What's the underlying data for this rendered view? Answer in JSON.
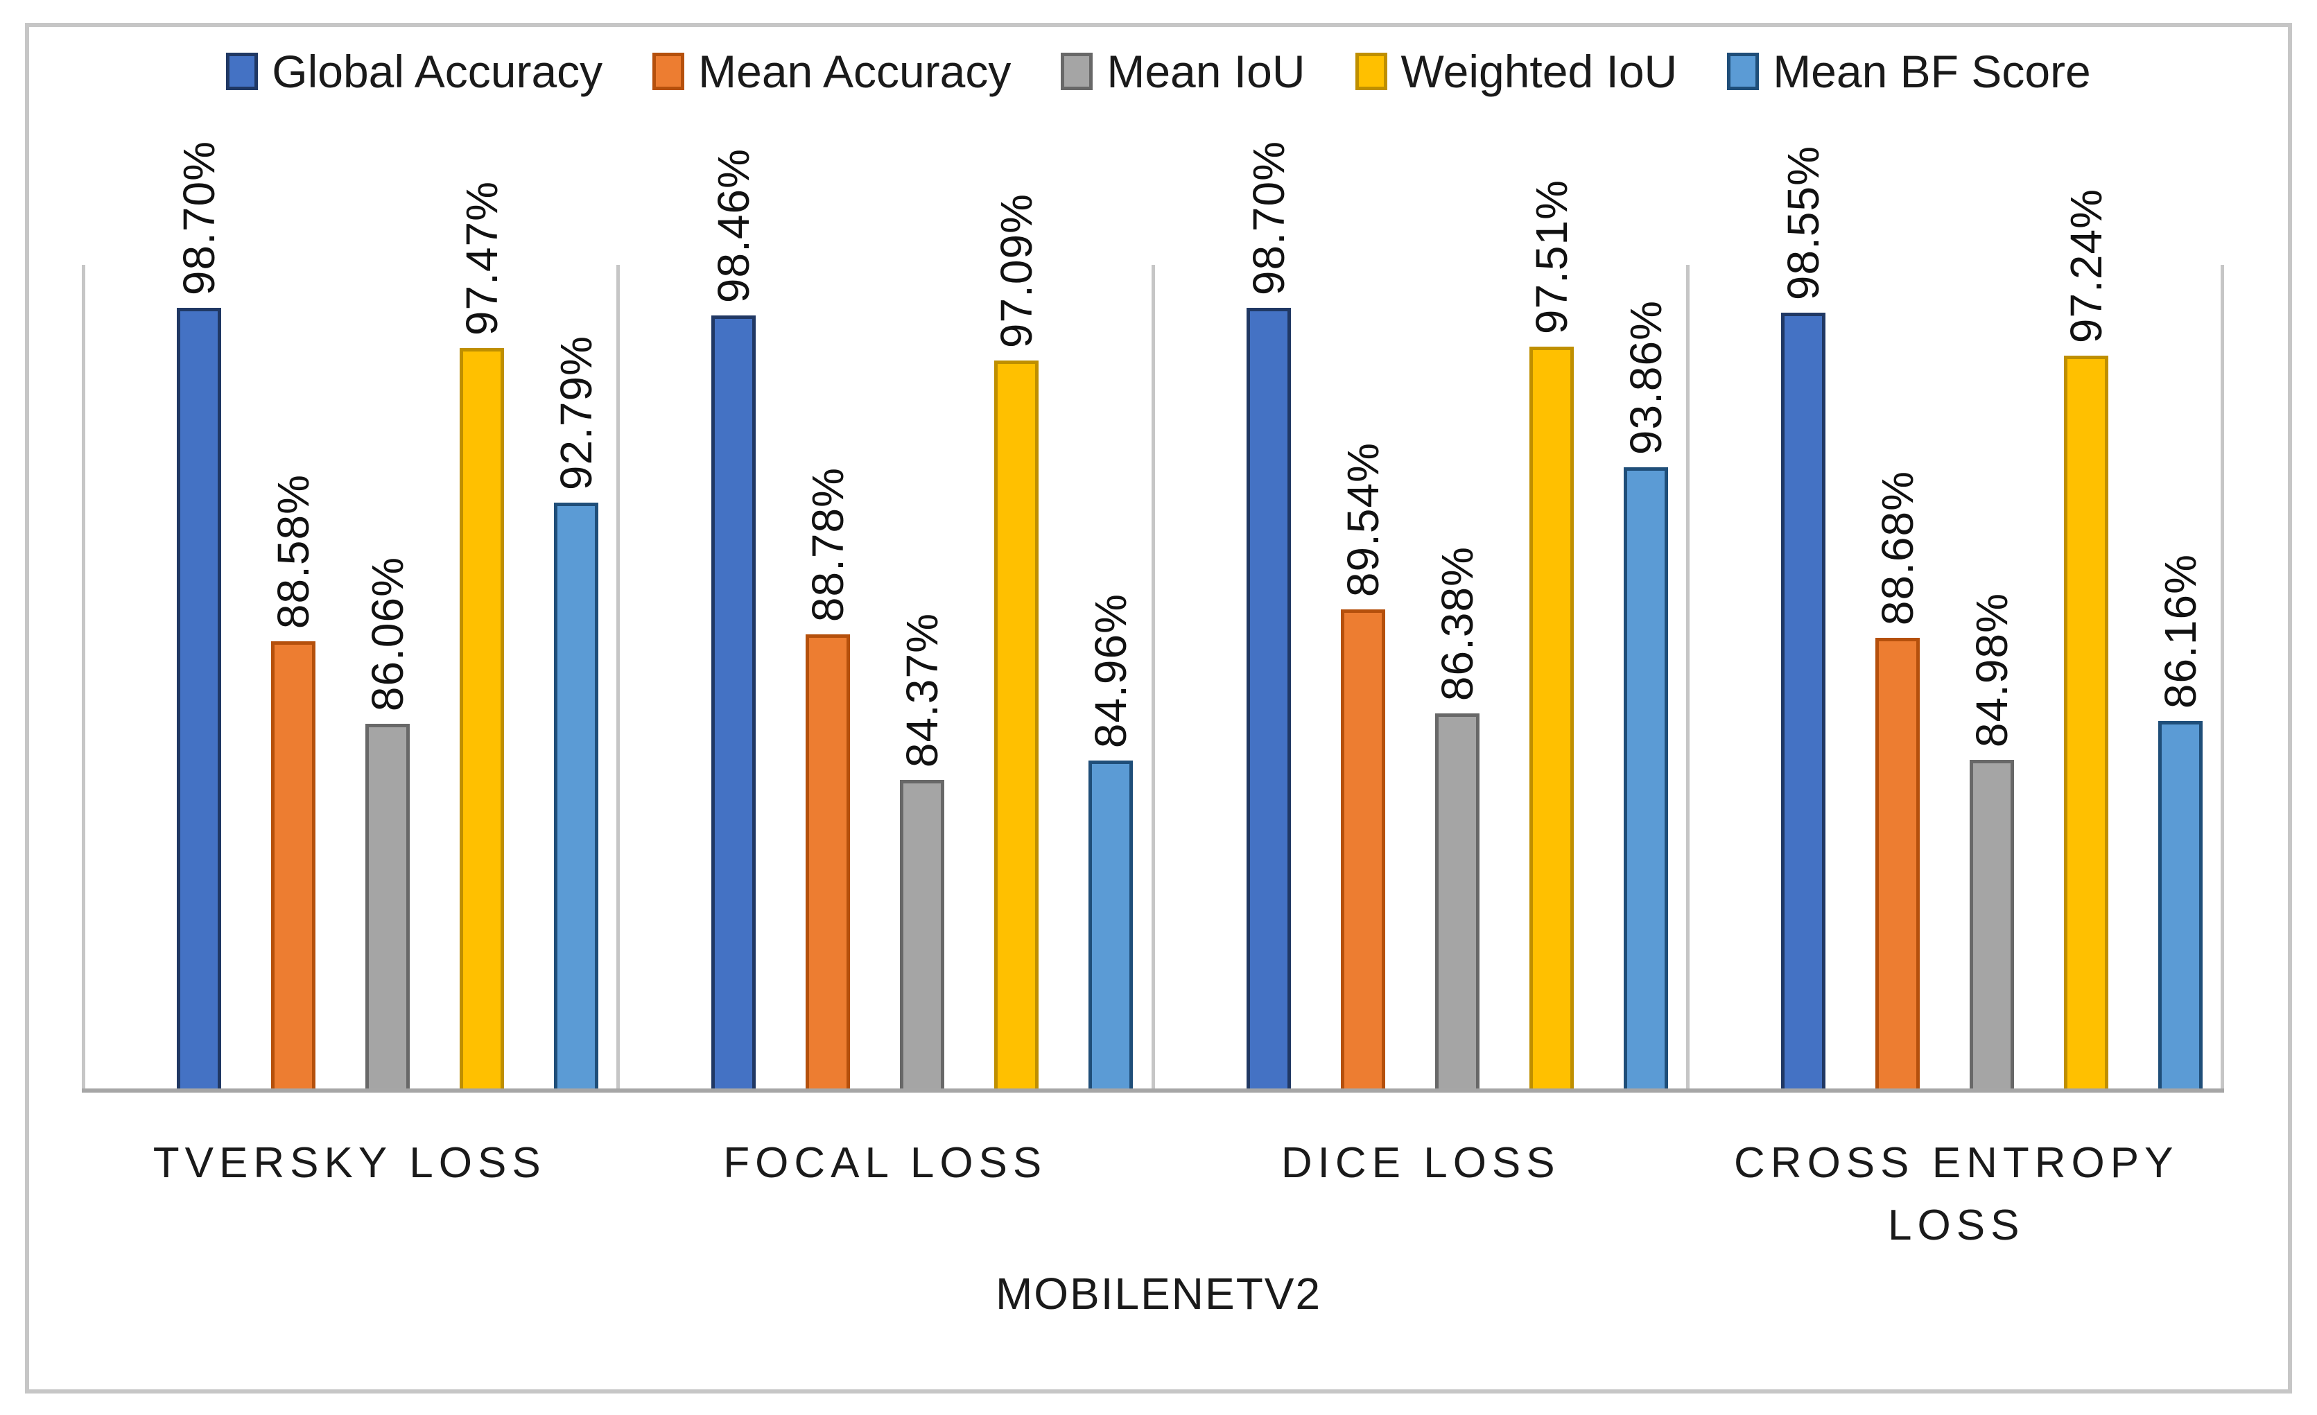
{
  "figure": {
    "background": "#FFFFFF",
    "border_color": "#C6C6C6",
    "separator_color": "#C6C6C6",
    "baseline_color": "#A6A6A6"
  },
  "chart_data": {
    "type": "bar",
    "title": "",
    "xlabel": "MOBILENETV2",
    "ylabel": "",
    "ylim": [
      75,
      100
    ],
    "grid": false,
    "legend_position": "top",
    "bar_label_rotation": 90,
    "bar_label_format": "0.00%",
    "categories": [
      "TVERSKY LOSS",
      "FOCAL LOSS",
      "DICE LOSS",
      "CROSS ENTROPY LOSS"
    ],
    "series": [
      {
        "name": "Global Accuracy",
        "fill": "#4472C4",
        "border": "#203864",
        "values": [
          98.7,
          98.46,
          98.7,
          98.55
        ]
      },
      {
        "name": "Mean Accuracy",
        "fill": "#ED7D31",
        "border": "#B5500C",
        "values": [
          88.58,
          88.78,
          89.54,
          88.68
        ]
      },
      {
        "name": "Mean IoU",
        "fill": "#A5A5A5",
        "border": "#686868",
        "values": [
          86.06,
          84.37,
          86.38,
          84.98
        ]
      },
      {
        "name": "Weighted IoU",
        "fill": "#FFC000",
        "border": "#BF8F00",
        "values": [
          97.47,
          97.09,
          97.51,
          97.24
        ]
      },
      {
        "name": "Mean BF Score",
        "fill": "#5B9BD5",
        "border": "#1F4E79",
        "values": [
          92.79,
          84.96,
          93.86,
          86.16
        ]
      }
    ]
  }
}
